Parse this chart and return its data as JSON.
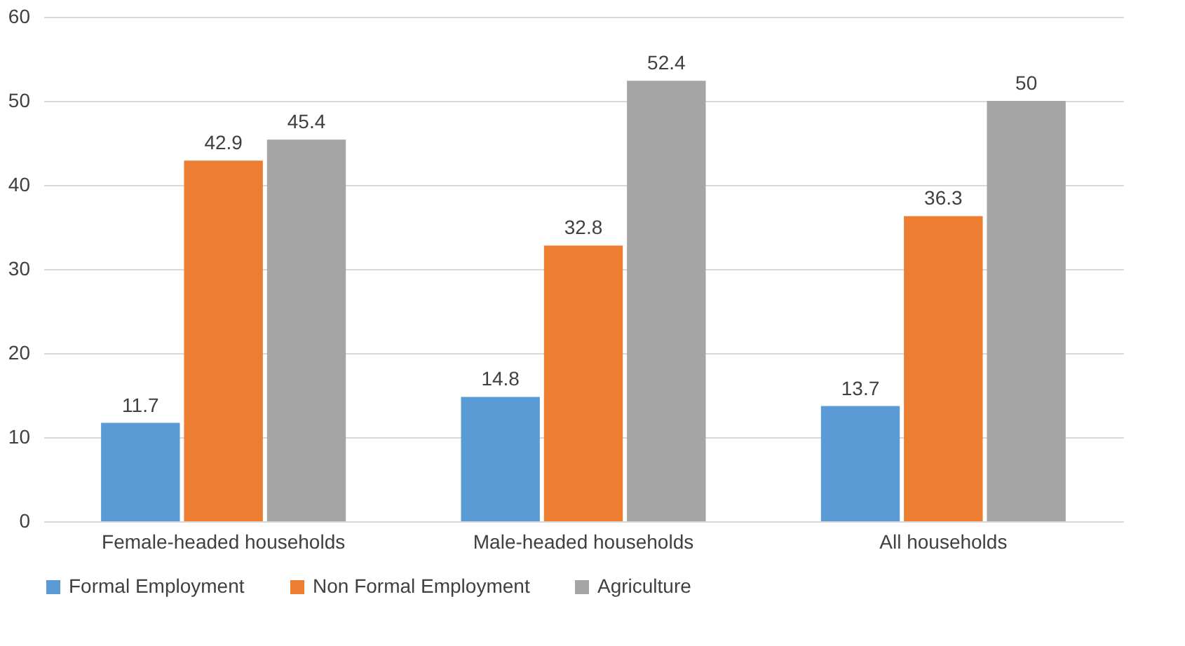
{
  "chart_data": {
    "type": "bar",
    "categories": [
      "Female-headed households",
      "Male-headed households",
      "All households"
    ],
    "series": [
      {
        "name": "Formal Employment",
        "color": "#5b9bd5",
        "values": [
          11.7,
          14.8,
          13.7
        ]
      },
      {
        "name": "Non Formal Employment",
        "color": "#ed7d31",
        "values": [
          42.9,
          32.8,
          36.3
        ]
      },
      {
        "name": "Agriculture",
        "color": "#a5a5a5",
        "values": [
          45.4,
          52.4,
          50
        ]
      }
    ],
    "ylim": [
      0,
      60
    ],
    "yticks": [
      0,
      10,
      20,
      30,
      40,
      50,
      60
    ],
    "grid": "y",
    "legend": "bottom",
    "data_labels": true
  }
}
